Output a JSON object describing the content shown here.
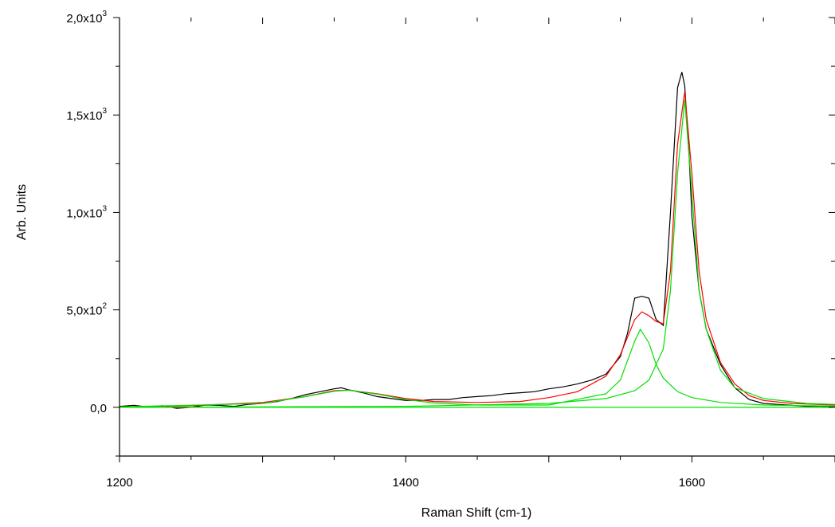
{
  "chart_data": {
    "type": "line",
    "xlabel": "Raman Shift (cm-1)",
    "ylabel": "Arb. Units",
    "xlim": [
      1200,
      1700
    ],
    "ylim": [
      -250,
      2000
    ],
    "x_ticks": [
      1200,
      1400,
      1600
    ],
    "y_ticks": [
      {
        "value": 0,
        "mantissa": "0,0",
        "exp": ""
      },
      {
        "value": 500,
        "mantissa": "5,0x10",
        "exp": "2"
      },
      {
        "value": 1000,
        "mantissa": "1,0x10",
        "exp": "3"
      },
      {
        "value": 1500,
        "mantissa": "1,5x10",
        "exp": "3"
      },
      {
        "value": 2000,
        "mantissa": "2,0x10",
        "exp": "3"
      }
    ],
    "grid": false,
    "colors": {
      "measured": "#000000",
      "fit": "#ff0000",
      "component": "#00e000"
    },
    "series": [
      {
        "role": "measured",
        "x": [
          1200,
          1210,
          1220,
          1230,
          1240,
          1250,
          1260,
          1270,
          1280,
          1290,
          1300,
          1310,
          1320,
          1330,
          1340,
          1350,
          1355,
          1360,
          1370,
          1380,
          1390,
          1400,
          1410,
          1420,
          1430,
          1440,
          1450,
          1460,
          1470,
          1480,
          1490,
          1500,
          1510,
          1520,
          1530,
          1540,
          1550,
          1555,
          1560,
          1565,
          1570,
          1575,
          1580,
          1585,
          1590,
          1593,
          1595,
          1598,
          1600,
          1605,
          1610,
          1620,
          1630,
          1640,
          1650,
          1660,
          1670,
          1680,
          1690,
          1700
        ],
        "y": [
          5,
          10,
          2,
          8,
          -5,
          0,
          12,
          10,
          5,
          15,
          20,
          30,
          45,
          65,
          80,
          95,
          100,
          90,
          75,
          55,
          45,
          35,
          35,
          40,
          40,
          50,
          55,
          60,
          70,
          75,
          80,
          95,
          105,
          120,
          140,
          170,
          260,
          380,
          560,
          570,
          560,
          450,
          420,
          1000,
          1640,
          1720,
          1650,
          1300,
          980,
          600,
          400,
          220,
          100,
          40,
          20,
          15,
          10,
          5,
          5,
          0
        ]
      },
      {
        "role": "fit",
        "x": [
          1200,
          1250,
          1300,
          1330,
          1350,
          1360,
          1380,
          1400,
          1420,
          1450,
          1480,
          1500,
          1520,
          1540,
          1550,
          1560,
          1565,
          1570,
          1575,
          1580,
          1585,
          1590,
          1595,
          1600,
          1605,
          1610,
          1620,
          1630,
          1640,
          1650,
          1670,
          1700
        ],
        "y": [
          3,
          8,
          25,
          55,
          85,
          88,
          70,
          45,
          30,
          25,
          30,
          50,
          80,
          160,
          270,
          450,
          490,
          470,
          440,
          430,
          700,
          1350,
          1620,
          1200,
          700,
          450,
          230,
          120,
          60,
          35,
          20,
          12
        ]
      },
      {
        "role": "component",
        "x": [
          1200,
          1300,
          1330,
          1350,
          1360,
          1380,
          1400,
          1420,
          1450,
          1500,
          1540,
          1550,
          1555,
          1560,
          1564,
          1570,
          1575,
          1580,
          1590,
          1600,
          1620,
          1650,
          1700
        ],
        "y": [
          2,
          20,
          55,
          82,
          88,
          68,
          40,
          22,
          12,
          12,
          70,
          140,
          240,
          340,
          400,
          330,
          220,
          150,
          80,
          50,
          25,
          12,
          6
        ]
      },
      {
        "role": "component",
        "x": [
          1200,
          1400,
          1500,
          1540,
          1560,
          1570,
          1580,
          1585,
          1590,
          1595,
          1600,
          1605,
          1610,
          1620,
          1630,
          1650,
          1680,
          1700
        ],
        "y": [
          0,
          5,
          20,
          45,
          85,
          140,
          300,
          600,
          1200,
          1580,
          1100,
          600,
          400,
          190,
          100,
          45,
          20,
          15
        ]
      },
      {
        "role": "component",
        "x": [
          1200,
          1700
        ],
        "y": [
          0,
          0
        ]
      }
    ]
  }
}
